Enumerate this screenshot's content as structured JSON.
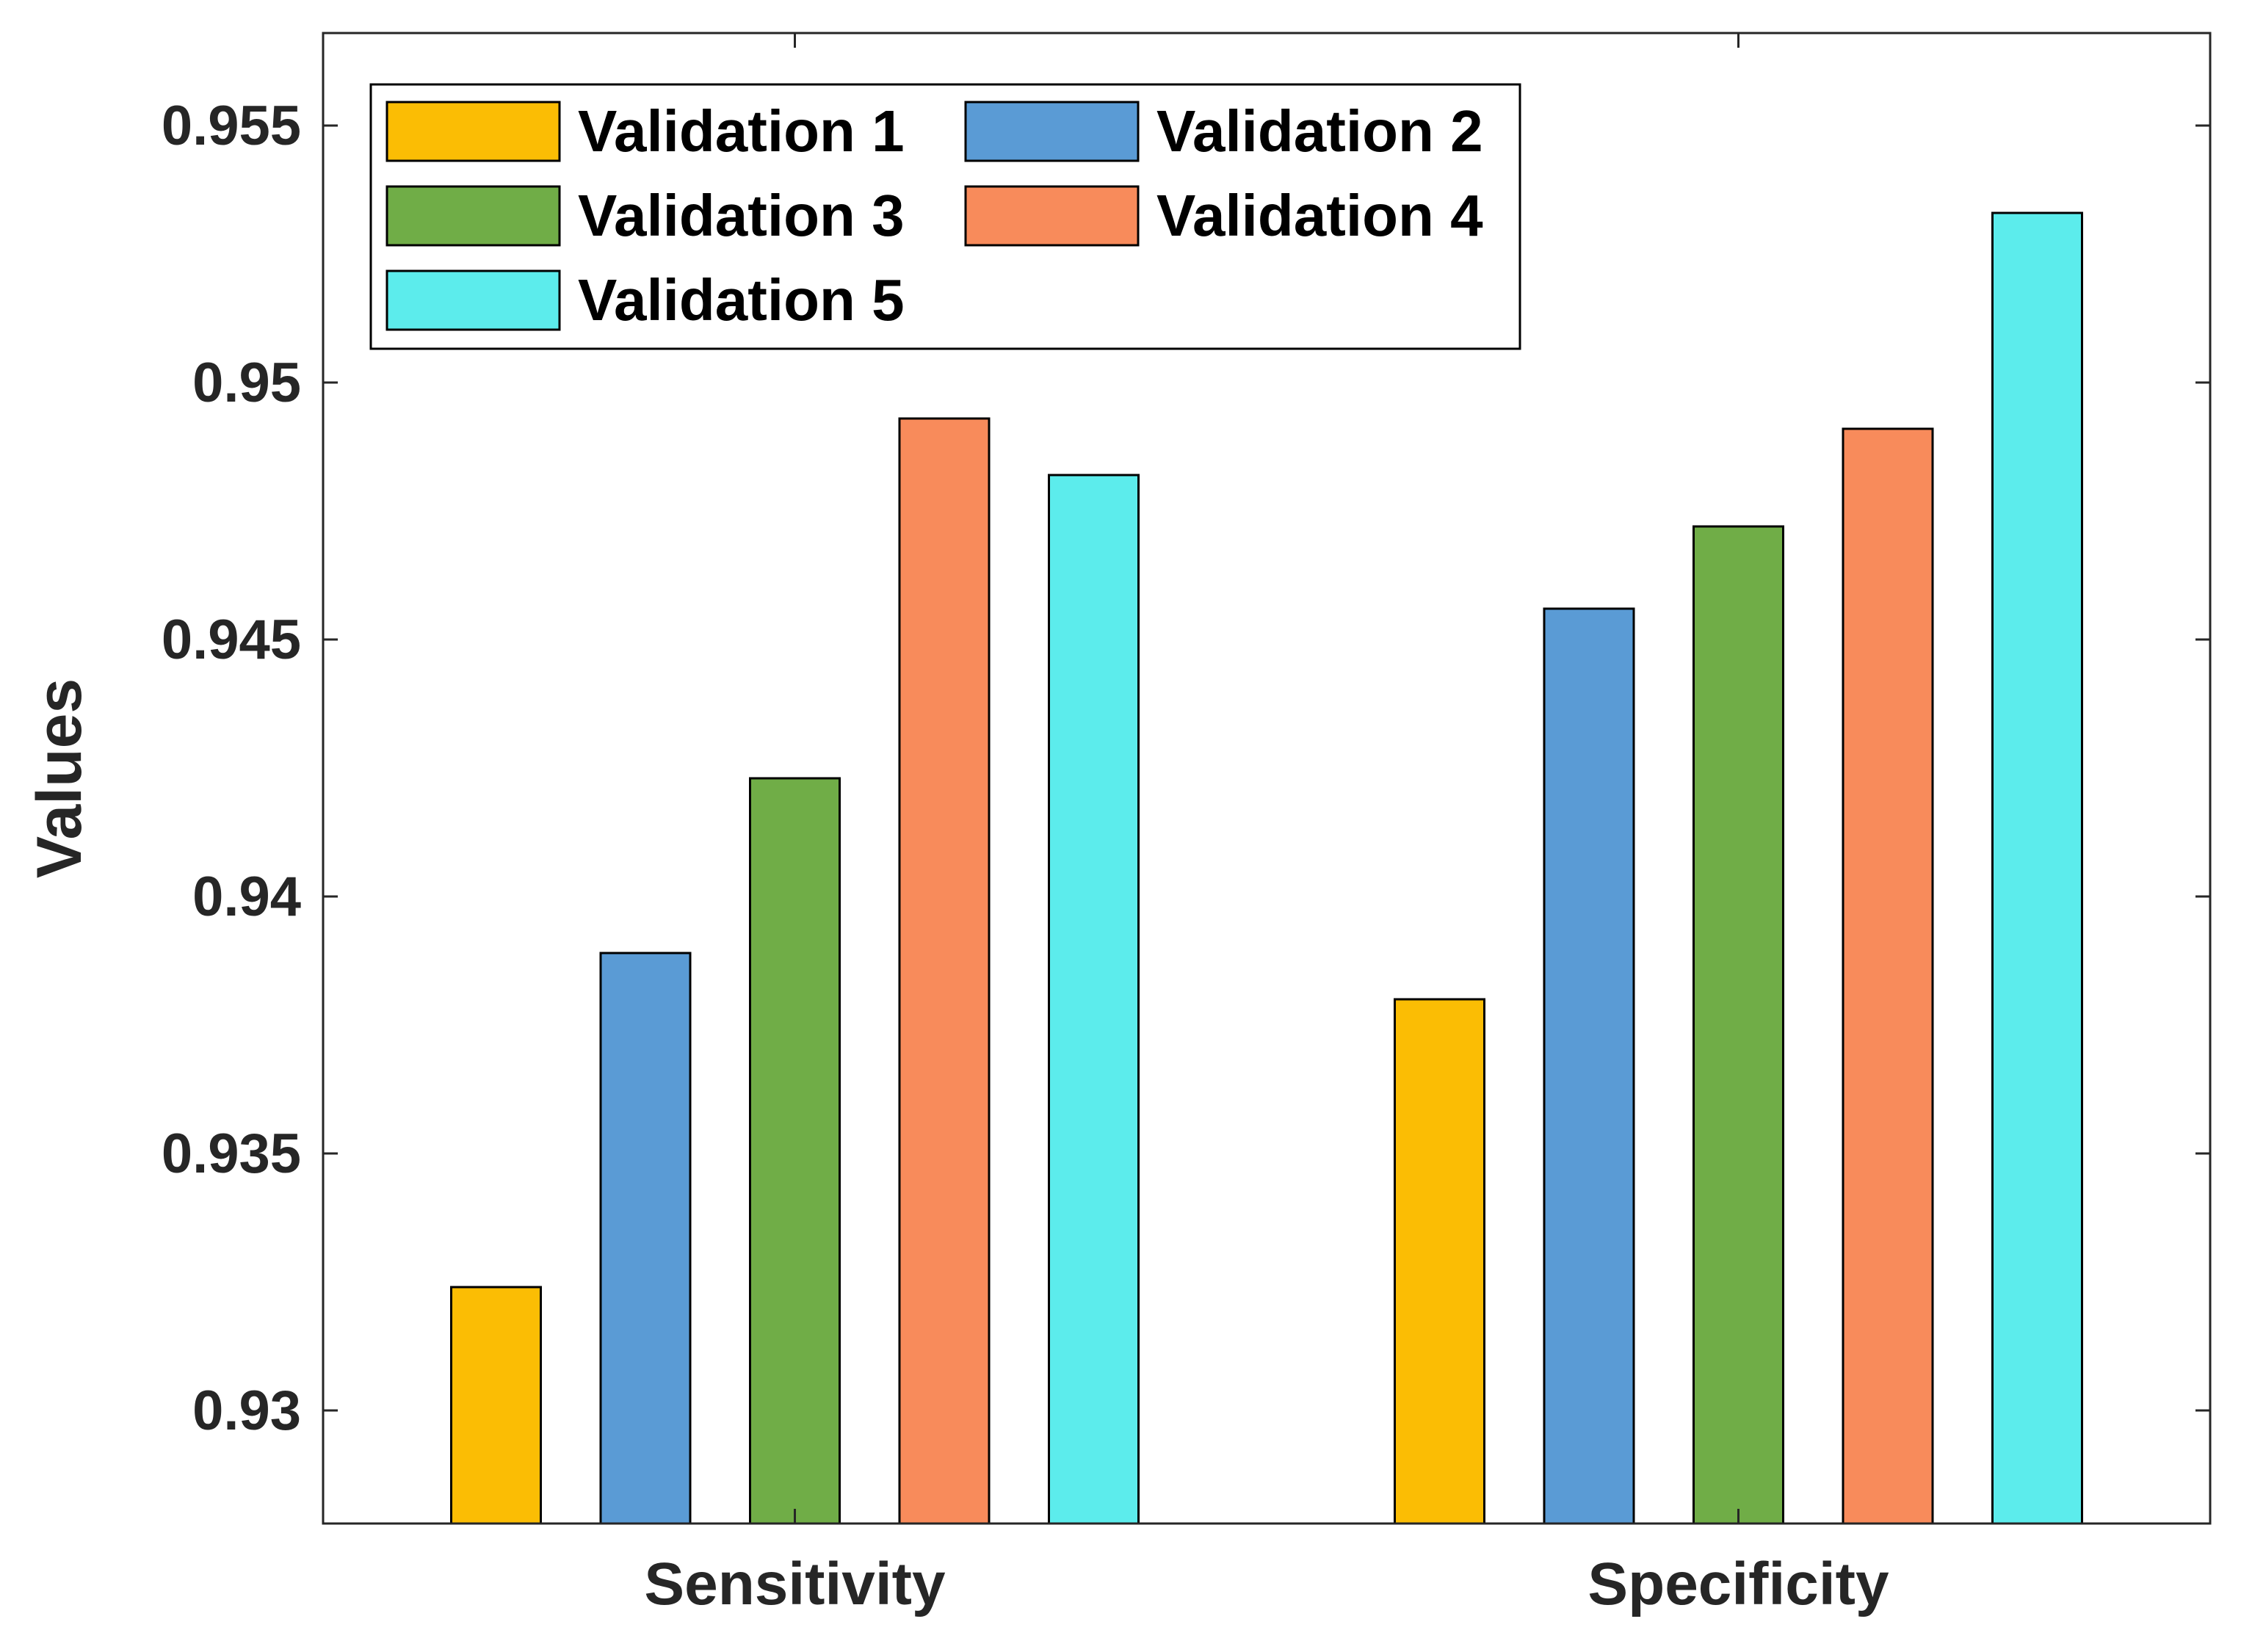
{
  "chart_data": {
    "type": "bar",
    "categories": [
      "Sensitivity",
      "Specificity"
    ],
    "series": [
      {
        "name": "Validation 1",
        "color": "#FBBD04",
        "values": [
          0.9324,
          0.938
        ]
      },
      {
        "name": "Validation 2",
        "color": "#5A9BD5",
        "values": [
          0.9389,
          0.9456
        ]
      },
      {
        "name": "Validation 3",
        "color": "#70AD47",
        "values": [
          0.9423,
          0.9472
        ]
      },
      {
        "name": "Validation 4",
        "color": "#F88B5B",
        "values": [
          0.9493,
          0.9491
        ]
      },
      {
        "name": "Validation 5",
        "color": "#5CECEC",
        "values": [
          0.9482,
          0.9533
        ]
      }
    ],
    "xlabel": "",
    "ylabel": "Values",
    "ylim": [
      0.9278,
      0.9568
    ],
    "yticks": [
      0.93,
      0.935,
      0.94,
      0.945,
      0.95,
      0.955
    ],
    "ytick_labels": [
      "0.93",
      "0.935",
      "0.94",
      "0.945",
      "0.95",
      "0.955"
    ],
    "grid": false,
    "legend_position": "top-left",
    "legend_columns": 2
  }
}
